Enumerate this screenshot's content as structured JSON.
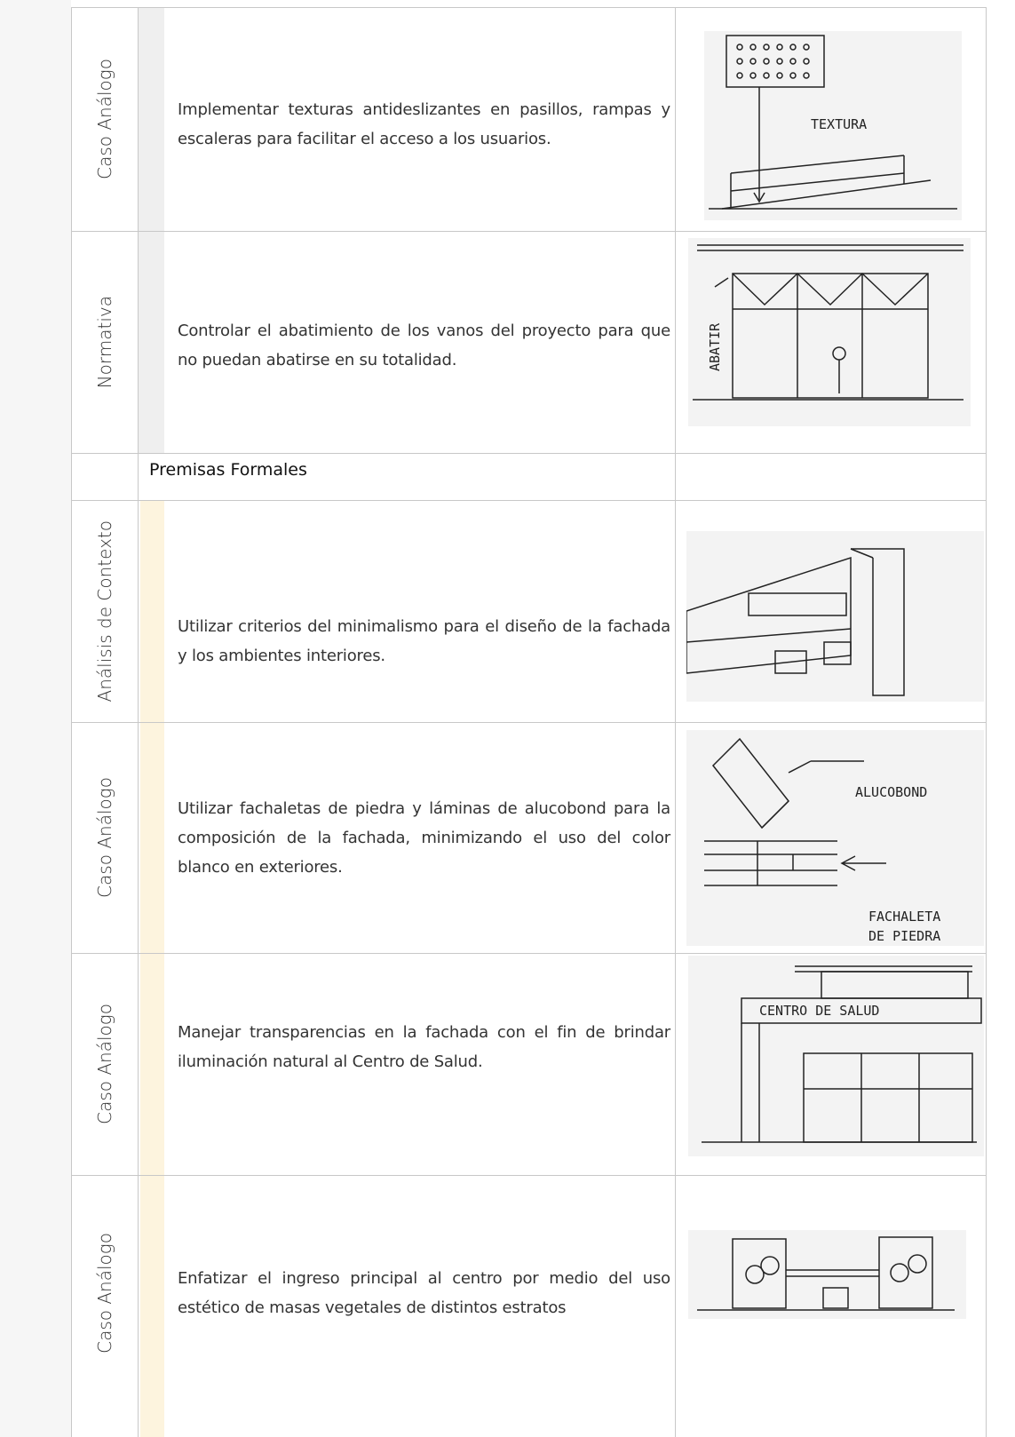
{
  "table": {
    "rows": [
      {
        "source": "Caso Análogo",
        "premise": "Implementar texturas antideslizantes en pasillos, rampas y escaleras para facilitar el acceso a los usuarios.",
        "sketch_labels": [
          "TEXTURA"
        ]
      },
      {
        "source": "Normativa",
        "premise": "Controlar el abatimiento de los vanos del proyecto para que no puedan abatirse en su totalidad.",
        "sketch_labels": [
          "ABATIR"
        ]
      },
      {
        "source": "Análisis de Contexto",
        "premise": "Utilizar criterios del minimalismo para el diseño de la fachada y los ambientes interiores.",
        "sketch_labels": []
      },
      {
        "source": "Caso Análogo",
        "premise": "Utilizar fachaletas de piedra y láminas de alucobond para la composición de la fachada, minimizando el uso del color blanco en exteriores.",
        "sketch_labels": [
          "ALUCOBOND",
          "FACHALETA",
          "DE PIEDRA"
        ]
      },
      {
        "source": "Caso Análogo",
        "premise": "Manejar transparencias en la fachada con el fin de brindar iluminación natural al Centro de Salud.",
        "sketch_labels": [
          "CENTRO DE SALUD"
        ]
      },
      {
        "source": "Caso Análogo",
        "premise": "Enfatizar el ingreso principal al centro por medio del uso estético de masas vegetales de distintos estratos",
        "sketch_labels": []
      }
    ],
    "section_header": "Premisas Formales"
  }
}
